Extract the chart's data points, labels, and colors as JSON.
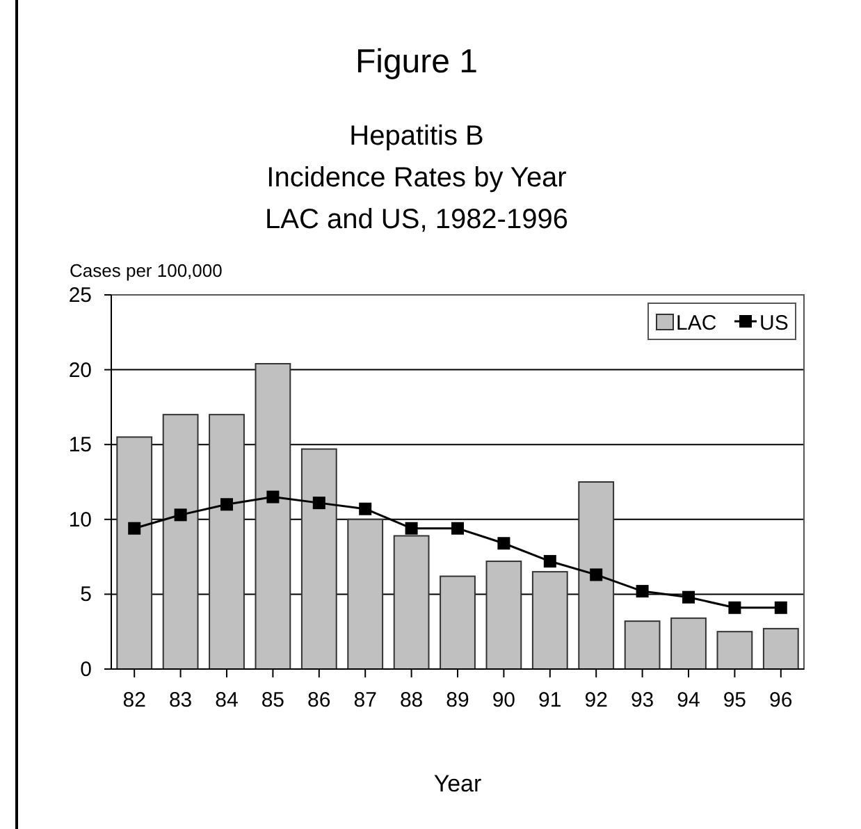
{
  "chart_data": {
    "type": "bar",
    "title": "Figure 1",
    "subtitle": "Hepatitis B\nIncidence Rates by Year\nLAC and US, 1982-1996",
    "xlabel": "Year",
    "ylabel": "Cases per 100,000",
    "categories": [
      "82",
      "83",
      "84",
      "85",
      "86",
      "87",
      "88",
      "89",
      "90",
      "91",
      "92",
      "93",
      "94",
      "95",
      "96"
    ],
    "series": [
      {
        "name": "LAC",
        "color": "#c0c0c0",
        "values": [
          15.5,
          17.0,
          17.0,
          20.4,
          14.7,
          10.0,
          8.9,
          6.2,
          7.2,
          6.5,
          12.5,
          3.2,
          3.4,
          2.5,
          2.7
        ]
      },
      {
        "name": "US",
        "type": "line",
        "color": "#000000",
        "values": [
          9.4,
          10.3,
          11.0,
          11.5,
          11.1,
          10.7,
          9.4,
          9.4,
          8.4,
          7.2,
          6.3,
          5.2,
          4.8,
          4.1,
          4.1
        ]
      }
    ],
    "ylim": [
      0,
      25
    ],
    "yticks": [
      0,
      5,
      10,
      15,
      20,
      25
    ],
    "grid": "y",
    "legend": "top right",
    "marker": "square",
    "line_style": "solid"
  }
}
